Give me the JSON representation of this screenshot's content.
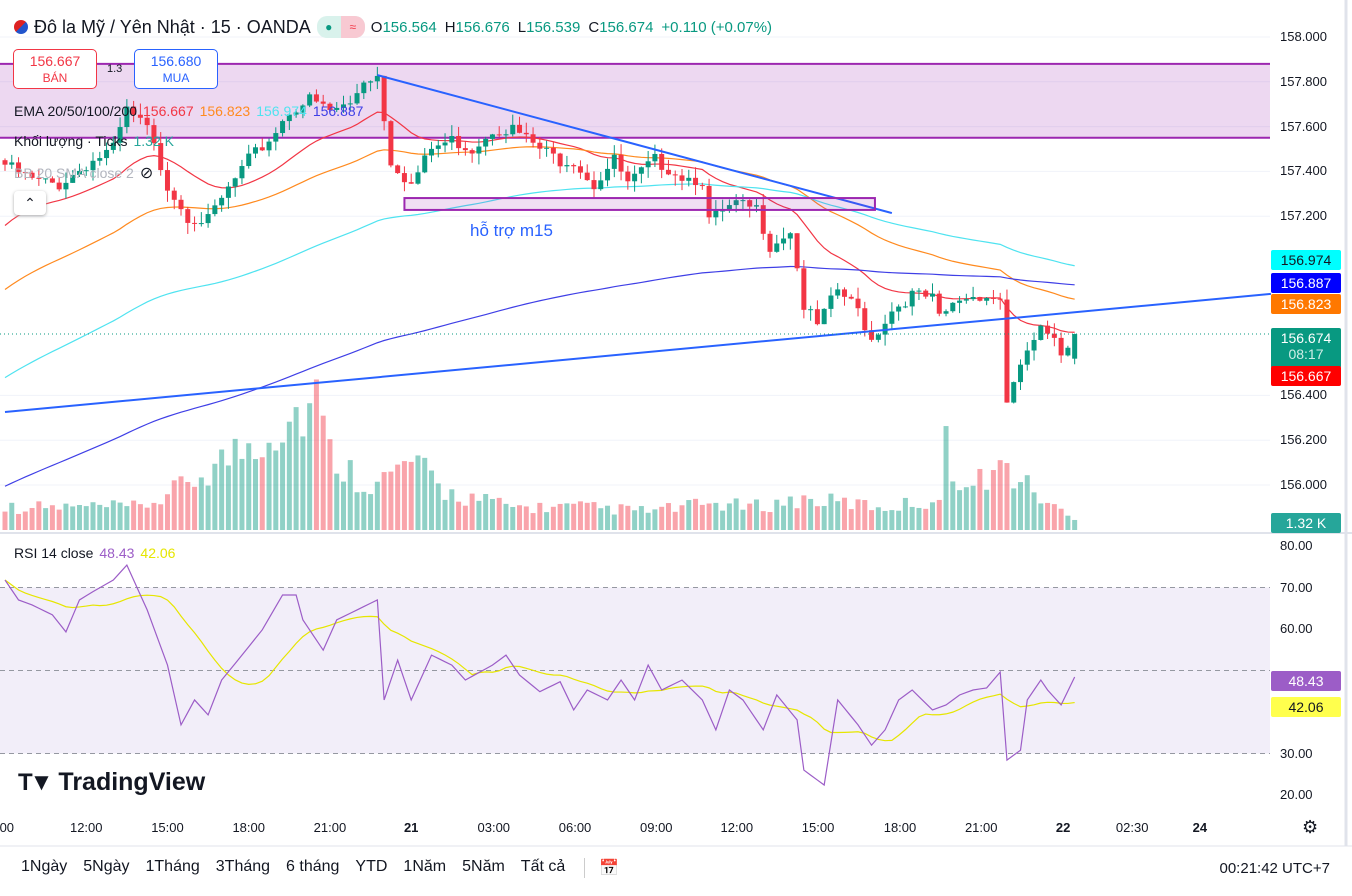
{
  "header": {
    "title": "Đô la Mỹ / Yên Nhật · 15 · OANDA",
    "o_label": "O",
    "o": "156.564",
    "h_label": "H",
    "h": "156.676",
    "l_label": "L",
    "l": "156.539",
    "c_label": "C",
    "c": "156.674",
    "change": "+0.110 (+0.07%)"
  },
  "trade": {
    "sell_price": "156.667",
    "sell_label": "BÁN",
    "spread": "1.3",
    "buy_price": "156.680",
    "buy_label": "MUA"
  },
  "legends": {
    "ema_label": "EMA 20/50/100/200",
    "ema20": "156.667",
    "ema50": "156.823",
    "ema100": "156.974",
    "ema200": "156.887",
    "volume_label": "Khối lượng · Ticks",
    "volume_value": "1.32 K",
    "bb_label": "BB 20 SMA close 2",
    "rsi_label": "RSI 14 close",
    "rsi_value": "48.43",
    "rsi_ma_value": "42.06"
  },
  "colors": {
    "up": "#089981",
    "down": "#f23645",
    "ema20": "#f23645",
    "ema50": "#ff8a1f",
    "ema100": "#4fe3f0",
    "ema200": "#3f3fe6",
    "rsi": "#9c5dc7",
    "rsi_ma": "#e6e600",
    "zone": "#9c27b0",
    "trend": "#2962ff"
  },
  "chart_data": {
    "type": "candlestick",
    "symbol": "USDJPY 15m",
    "price_axis": {
      "ticks": [
        "158.000",
        "157.800",
        "157.600",
        "157.400",
        "157.200",
        "156.400",
        "156.200",
        "156.000"
      ],
      "tick_values": [
        158,
        157.8,
        157.6,
        157.4,
        157.2,
        156.4,
        156.2,
        156.0
      ]
    },
    "price_badges": [
      {
        "text": "156.974",
        "value": 156.974,
        "color": "#00ffff",
        "fg": "#131722"
      },
      {
        "text": "156.887",
        "value": 156.887,
        "color": "#0000ff",
        "fg": "#ffffff"
      },
      {
        "text": "156.823",
        "value": 156.823,
        "color": "#ff7800",
        "fg": "#ffffff"
      },
      {
        "text": "156.667",
        "value": 156.667,
        "color": "#ff0000",
        "fg": "#ffffff"
      }
    ],
    "last_price": {
      "text": "156.674",
      "countdown": "08:17",
      "value": 156.674
    },
    "volume_badge": "1.32 K",
    "close_anchors": [
      [
        0,
        157.43
      ],
      [
        4,
        157.36
      ],
      [
        8,
        157.34
      ],
      [
        12,
        157.43
      ],
      [
        16,
        157.5
      ],
      [
        18,
        157.67
      ],
      [
        21,
        157.59
      ],
      [
        24,
        157.34
      ],
      [
        27,
        157.2
      ],
      [
        30,
        157.18
      ],
      [
        33,
        157.32
      ],
      [
        36,
        157.45
      ],
      [
        39,
        157.54
      ],
      [
        42,
        157.67
      ],
      [
        45,
        157.72
      ],
      [
        48,
        157.67
      ],
      [
        51,
        157.7
      ],
      [
        53,
        157.81
      ],
      [
        55,
        157.83
      ],
      [
        57,
        157.45
      ],
      [
        60,
        157.34
      ],
      [
        63,
        157.5
      ],
      [
        66,
        157.54
      ],
      [
        69,
        157.5
      ],
      [
        72,
        157.59
      ],
      [
        75,
        157.59
      ],
      [
        79,
        157.5
      ],
      [
        82,
        157.45
      ],
      [
        84,
        157.45
      ],
      [
        87,
        157.34
      ],
      [
        90,
        157.45
      ],
      [
        92,
        157.34
      ],
      [
        96,
        157.45
      ],
      [
        100,
        157.38
      ],
      [
        103,
        157.36
      ],
      [
        104,
        157.18
      ],
      [
        108,
        157.25
      ],
      [
        111,
        157.23
      ],
      [
        113,
        157.07
      ],
      [
        116,
        157.14
      ],
      [
        118,
        156.8
      ],
      [
        120,
        156.71
      ],
      [
        123,
        156.87
      ],
      [
        126,
        156.78
      ],
      [
        128,
        156.65
      ],
      [
        131,
        156.78
      ],
      [
        134,
        156.85
      ],
      [
        137,
        156.83
      ],
      [
        138,
        156.74
      ],
      [
        141,
        156.83
      ],
      [
        144,
        156.85
      ],
      [
        147,
        156.83
      ],
      [
        148,
        156.38
      ],
      [
        150,
        156.51
      ],
      [
        151,
        156.6
      ],
      [
        153,
        156.69
      ],
      [
        155,
        156.63
      ],
      [
        156,
        156.58
      ],
      [
        158,
        156.674
      ]
    ],
    "ema_seeds": {
      "ema20": 157.13,
      "ema50": 156.85,
      "ema100": 156.46,
      "ema200": 155.98
    },
    "volume_anchors_k": [
      [
        0,
        3
      ],
      [
        20,
        3
      ],
      [
        24,
        4.5
      ],
      [
        46,
        17
      ],
      [
        48,
        10
      ],
      [
        52,
        7
      ],
      [
        55,
        6
      ],
      [
        60,
        9
      ],
      [
        65,
        5
      ],
      [
        75,
        3
      ],
      [
        85,
        3
      ],
      [
        95,
        2.5
      ],
      [
        100,
        3
      ],
      [
        105,
        3.5
      ],
      [
        110,
        3
      ],
      [
        118,
        4
      ],
      [
        125,
        3.5
      ],
      [
        130,
        3
      ],
      [
        138,
        4
      ],
      [
        139,
        11
      ],
      [
        142,
        5
      ],
      [
        146,
        8
      ],
      [
        148,
        8
      ],
      [
        150,
        6.5
      ],
      [
        152,
        5
      ],
      [
        155,
        3
      ],
      [
        158,
        1.32
      ]
    ],
    "zone": {
      "top": 157.88,
      "bottom": 157.55
    },
    "trendline_down": {
      "from": [
        55,
        157.83
      ],
      "to": [
        131,
        157.214
      ]
    },
    "trendline_up": {
      "from": [
        0,
        156.326
      ],
      "to": [
        187,
        156.853
      ]
    },
    "support_box": {
      "from_bar": 59,
      "to_bar": 128.5,
      "top": 157.281,
      "bottom": 157.228,
      "label": "hỗ trợ m15"
    },
    "rsi": {
      "anchors": [
        [
          0,
          71.8
        ],
        [
          2,
          67
        ],
        [
          4,
          65.8
        ],
        [
          7,
          63.4
        ],
        [
          9,
          59.3
        ],
        [
          11,
          67
        ],
        [
          13,
          69
        ],
        [
          16,
          71.8
        ],
        [
          18,
          75.4
        ],
        [
          21,
          64.6
        ],
        [
          24,
          51.3
        ],
        [
          26,
          36.9
        ],
        [
          28,
          42.9
        ],
        [
          30,
          39.3
        ],
        [
          32,
          47.7
        ],
        [
          35,
          53.7
        ],
        [
          38,
          59.8
        ],
        [
          41,
          68.2
        ],
        [
          43,
          68.2
        ],
        [
          44,
          62.2
        ],
        [
          47,
          54.9
        ],
        [
          49,
          62.2
        ],
        [
          52,
          64.6
        ],
        [
          55,
          67
        ],
        [
          56,
          42.9
        ],
        [
          58,
          52.5
        ],
        [
          60,
          42.9
        ],
        [
          63,
          53.7
        ],
        [
          66,
          51.3
        ],
        [
          68,
          47.7
        ],
        [
          72,
          51.3
        ],
        [
          74,
          53.7
        ],
        [
          76,
          48.9
        ],
        [
          79,
          44.9
        ],
        [
          82,
          47.3
        ],
        [
          84,
          40.5
        ],
        [
          86,
          45.3
        ],
        [
          89,
          42.9
        ],
        [
          91,
          47.7
        ],
        [
          93,
          42.9
        ],
        [
          95,
          51.3
        ],
        [
          97,
          45.3
        ],
        [
          100,
          47.7
        ],
        [
          103,
          42.9
        ],
        [
          105,
          35.7
        ],
        [
          107,
          45.3
        ],
        [
          109,
          42.9
        ],
        [
          112,
          35.7
        ],
        [
          114,
          44.1
        ],
        [
          117,
          38.1
        ],
        [
          118,
          26
        ],
        [
          121,
          22.4
        ],
        [
          123,
          42.9
        ],
        [
          126,
          36.9
        ],
        [
          128,
          32
        ],
        [
          130,
          35.7
        ],
        [
          132,
          42.9
        ],
        [
          134,
          45.3
        ],
        [
          137,
          40.5
        ],
        [
          139,
          41.7
        ],
        [
          141,
          44.1
        ],
        [
          143,
          45.3
        ],
        [
          145,
          45.8
        ],
        [
          147,
          49.6
        ],
        [
          148,
          28.4
        ],
        [
          150,
          30.8
        ],
        [
          151,
          42.9
        ],
        [
          153,
          47.7
        ],
        [
          154,
          45.3
        ],
        [
          156,
          41.7
        ],
        [
          158,
          48.43
        ]
      ],
      "ticks": [
        "80.00",
        "70.00",
        "60.00",
        "30.00",
        "20.00"
      ],
      "tick_values": [
        80,
        70,
        60,
        30,
        20
      ],
      "band": [
        30,
        70
      ],
      "badges": [
        {
          "text": "48.43",
          "value": 48.43,
          "color": "#9c5dc7",
          "fg": "#ffffff"
        },
        {
          "text": "42.06",
          "value": 42.06,
          "color": "#ffff4d",
          "fg": "#131722"
        }
      ]
    },
    "time_labels": [
      {
        "t": ":00",
        "bar": 0
      },
      {
        "t": "12:00",
        "bar": 12
      },
      {
        "t": "15:00",
        "bar": 24
      },
      {
        "t": "18:00",
        "bar": 36
      },
      {
        "t": "21:00",
        "bar": 48
      },
      {
        "t": "21",
        "bar": 60
      },
      {
        "t": "03:00",
        "bar": 72.2
      },
      {
        "t": "06:00",
        "bar": 84.2
      },
      {
        "t": "09:00",
        "bar": 96.2
      },
      {
        "t": "12:00",
        "bar": 108.1
      },
      {
        "t": "15:00",
        "bar": 120.1
      },
      {
        "t": "18:00",
        "bar": 132.2
      },
      {
        "t": "21:00",
        "bar": 144.2
      },
      {
        "t": "22",
        "bar": 156.3
      },
      {
        "t": "02:30",
        "bar": 166.5
      },
      {
        "t": "24",
        "bar": 176.5
      }
    ]
  },
  "bottom": {
    "ranges": [
      "1Ngày",
      "5Ngày",
      "1Tháng",
      "3Tháng",
      "6 tháng",
      "YTD",
      "1Năm",
      "5Năm",
      "Tất cả"
    ],
    "clock": "00:21:42 UTC+7"
  },
  "logo": "TradingView"
}
